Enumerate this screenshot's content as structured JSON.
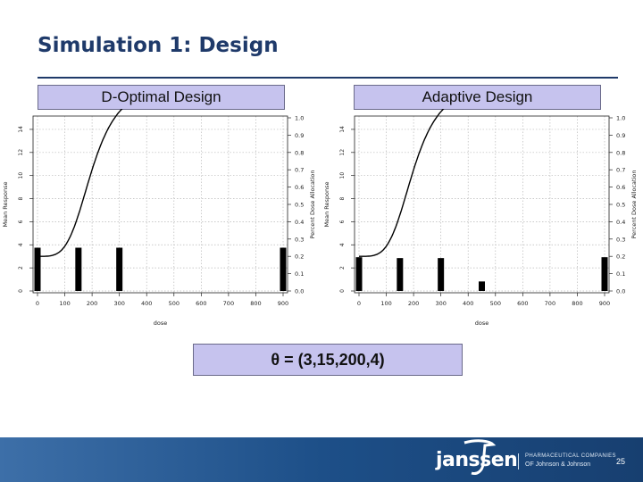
{
  "slide": {
    "title": "Simulation 1: Design",
    "theta_label": "θ = (3,15,200,4)",
    "footer": {
      "brand": "janssen",
      "tagline1": "PHARMACEUTICAL COMPANIES",
      "tagline2": "OF Johnson & Johnson",
      "page": "25"
    }
  },
  "colors": {
    "header_fill": "#c6c3ee",
    "title": "#1f3a6a",
    "footer": "#1d4f88"
  },
  "chart_data": [
    {
      "type": "line+bar",
      "title": "D-Optimal Design",
      "xlabel": "dose",
      "ylabel_left": "Mean Response",
      "ylabel_right": "Percent Dose Allocation",
      "xlim": [
        0,
        900
      ],
      "ylim_left": [
        0,
        15
      ],
      "ylim_right": [
        0,
        1.0
      ],
      "x_ticks": [
        0,
        100,
        200,
        300,
        400,
        500,
        600,
        700,
        800,
        900
      ],
      "y_ticks_left": [
        0,
        2,
        4,
        6,
        8,
        10,
        12,
        14
      ],
      "y_ticks_right": [
        "0.0",
        "0.1",
        "0.2",
        "0.3",
        "0.4",
        "0.5",
        "0.6",
        "0.7",
        "0.8",
        "0.9",
        "1.0"
      ],
      "curve": {
        "e0": 3,
        "emax": 15,
        "ed50": 200,
        "hill": 4
      },
      "allocation": {
        "doses": [
          0,
          150,
          300,
          900
        ],
        "percent": [
          0.25,
          0.25,
          0.25,
          0.25
        ]
      }
    },
    {
      "type": "line+bar",
      "title": "Adaptive Design",
      "xlabel": "dose",
      "ylabel_left": "Mean Response",
      "ylabel_right": "Percent Dose Allocation",
      "xlim": [
        0,
        900
      ],
      "ylim_left": [
        0,
        15
      ],
      "ylim_right": [
        0,
        1.0
      ],
      "x_ticks": [
        0,
        100,
        200,
        300,
        400,
        500,
        600,
        700,
        800,
        900
      ],
      "y_ticks_left": [
        0,
        2,
        4,
        6,
        8,
        10,
        12,
        14
      ],
      "y_ticks_right": [
        "0.0",
        "0.1",
        "0.2",
        "0.3",
        "0.4",
        "0.5",
        "0.6",
        "0.7",
        "0.8",
        "0.9",
        "1.0"
      ],
      "curve": {
        "e0": 3,
        "emax": 15,
        "ed50": 200,
        "hill": 4
      },
      "allocation": {
        "doses": [
          0,
          150,
          300,
          450,
          900
        ],
        "percent": [
          0.195,
          0.19,
          0.19,
          0.055,
          0.195
        ]
      }
    }
  ]
}
